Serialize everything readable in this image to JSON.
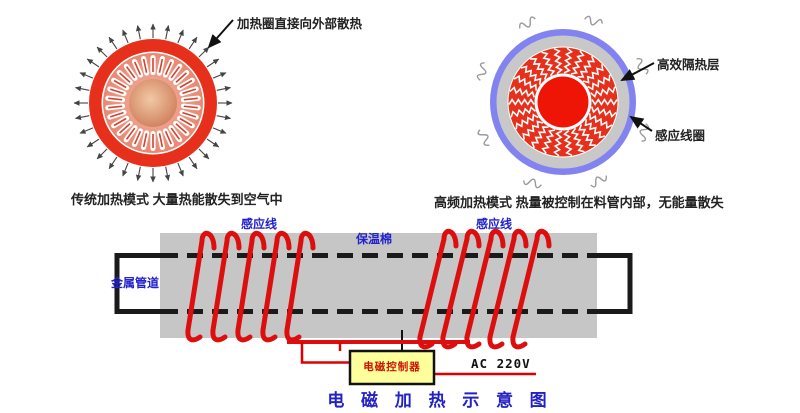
{
  "title": {
    "text": "电磁加热示意图",
    "display": "电 磁 加 热 示 意 图"
  },
  "labels": {
    "left_circle_callout": "加热圈直接向外部散热",
    "left_caption": "传统加热模式 大量热能散失到空气中",
    "right_caption": "高频加热模式 热量被控制在料管内部，无能量散失",
    "insulation_layer": "高效隔热层",
    "induction_coil": "感应线圈",
    "induction_wire_left": "感应线",
    "induction_wire_right": "感应线",
    "insulation_cotton": "保温棉",
    "metal_pipe": "金属管道",
    "controller": "电磁控制器",
    "power": "AC 220V"
  },
  "colors": {
    "accent_red": "#e6301c",
    "salmon_edge": "#e8836d",
    "salmon_center": "#f5b5a2",
    "core_tan_edge": "#cd7c57",
    "core_tan_center": "#f2c8a6",
    "slot_line_red": "#cc4433",
    "coil_red": "#dd0e0e",
    "ring_blue": "#8282f0",
    "ring_gray": "#c9c8c8",
    "center_red": "#ee1507",
    "insulation_gray": "#c6c6c6",
    "pipe_black": "#1a1a1a",
    "arrow_gray": "#444444",
    "squiggle_gray": "#999999",
    "label_blue": "#2323cc",
    "controller_yellow": "#ffff9c",
    "title_blue": "#2222c4",
    "wire_red": "#e00000"
  }
}
